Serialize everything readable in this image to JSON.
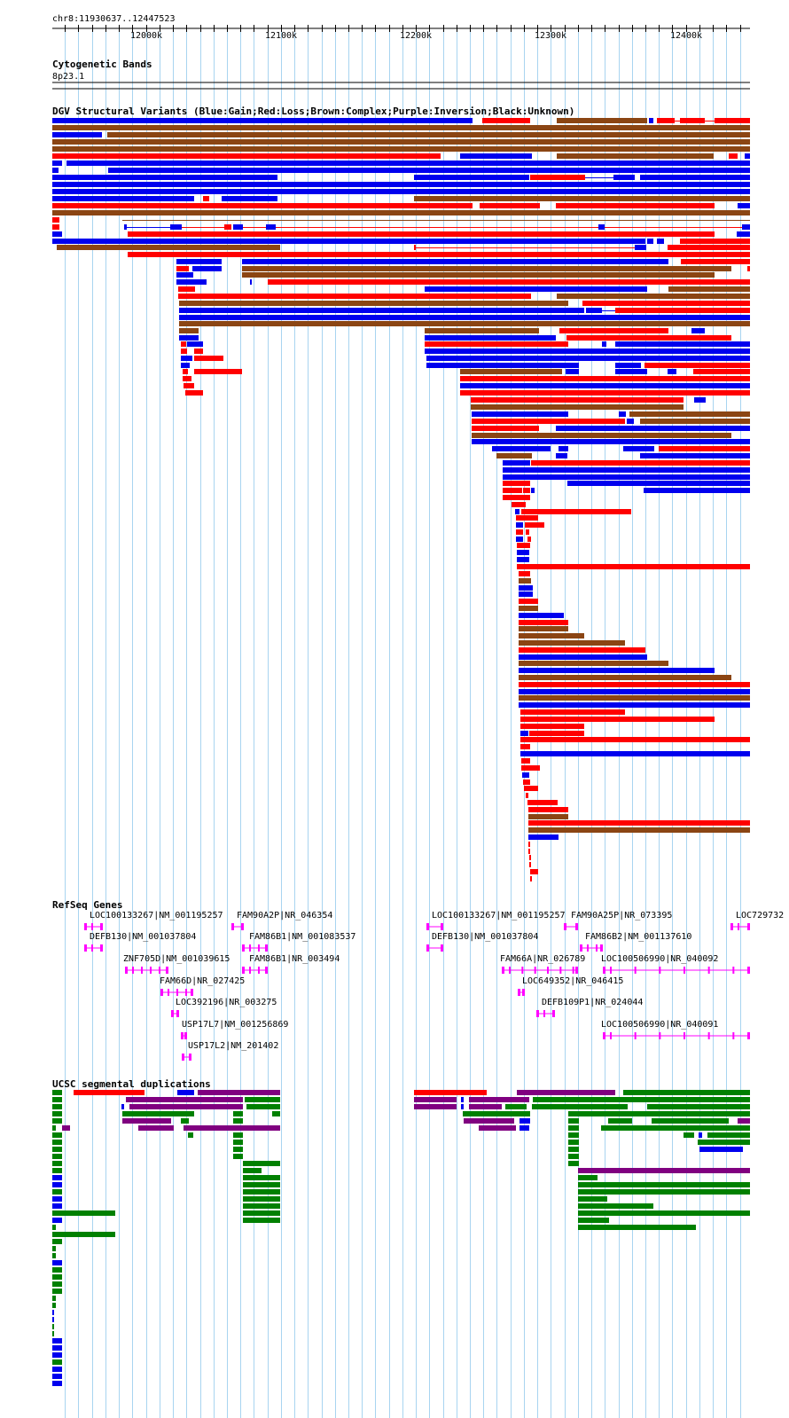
{
  "header": {
    "position": "chr8:11930637..12447523"
  },
  "ruler": {
    "start": 11930637,
    "end": 12447523,
    "ticks": [
      {
        "pos": 12000000,
        "label": "12000k"
      },
      {
        "pos": 12100000,
        "label": "12100k"
      },
      {
        "pos": 12200000,
        "label": "12200k"
      },
      {
        "pos": 12300000,
        "label": "12300k"
      },
      {
        "pos": 12400000,
        "label": "12400k"
      }
    ]
  },
  "tracks": {
    "cytobands": {
      "title": "Cytogenetic Bands",
      "band_label": "8p23.1"
    },
    "dgv": {
      "title": "DGV Structural Variants (Blue:Gain;Red:Loss;Brown:Complex;Purple:Inversion;Black:Unknown)"
    },
    "refseq": {
      "title": "RefSeq Genes"
    },
    "segdup": {
      "title": "UCSC segmental duplications"
    }
  },
  "colors": {
    "gain": "#0000ee",
    "loss": "#ff0000",
    "complex": "#8b4513",
    "inversion": "#800080",
    "gene": "#ff00ff",
    "segdup_green": "#008000",
    "grid": "#a8d4f0"
  },
  "genes": [
    {
      "label": "LOC100133267|NM_001195257",
      "start": 11955000,
      "end": 11965000
    },
    {
      "label": "DEFB130|NM_001037804",
      "start": 11955000,
      "end": 11965000
    },
    {
      "label": "ZNF705D|NM_001039615",
      "start": 11981000,
      "end": 12012000
    },
    {
      "label": "FAM66D|NR_027425",
      "start": 12012000,
      "end": 12039000
    },
    {
      "label": "LOC392196|NR_003275",
      "start": 12018000,
      "end": 12024000
    },
    {
      "label": "USP17L7|NM_001256869",
      "start": 12027000,
      "end": 12033000
    },
    {
      "label": "USP17L2|NM_201402",
      "start": 12027000,
      "end": 12033000
    },
    {
      "label": "FAM90A2P|NR_046354",
      "start": 12064000,
      "end": 12072000
    },
    {
      "label": "FAM86B1|NM_001083537",
      "start": 12073000,
      "end": 12087000
    },
    {
      "label": "FAM86B1|NR_003494",
      "start": 12073000,
      "end": 12087000
    },
    {
      "label": "LOC100133267|NM_001195257",
      "start": 12208000,
      "end": 12219000
    },
    {
      "label": "DEFB130|NM_001037804",
      "start": 12208000,
      "end": 12219000
    },
    {
      "label": "FAM66A|NR_026789",
      "start": 12259000,
      "end": 12292000
    },
    {
      "label": "LOC649352|NR_046415",
      "start": 12278000,
      "end": 12282000
    },
    {
      "label": "DEFB109P1|NR_024044",
      "start": 12291000,
      "end": 12305000
    },
    {
      "label": "FAM90A25P|NR_073395",
      "start": 12317000,
      "end": 12324000
    },
    {
      "label": "FAM86B2|NM_001137610",
      "start": 12328000,
      "end": 12342000
    },
    {
      "label": "LOC100506990|NR_040092",
      "start": 12334000,
      "end": 12447523
    },
    {
      "label": "LOC100506990|NR_040091",
      "start": 12334000,
      "end": 12447523
    },
    {
      "label": "LOC729732",
      "start": 12432000,
      "end": 12447523
    }
  ]
}
